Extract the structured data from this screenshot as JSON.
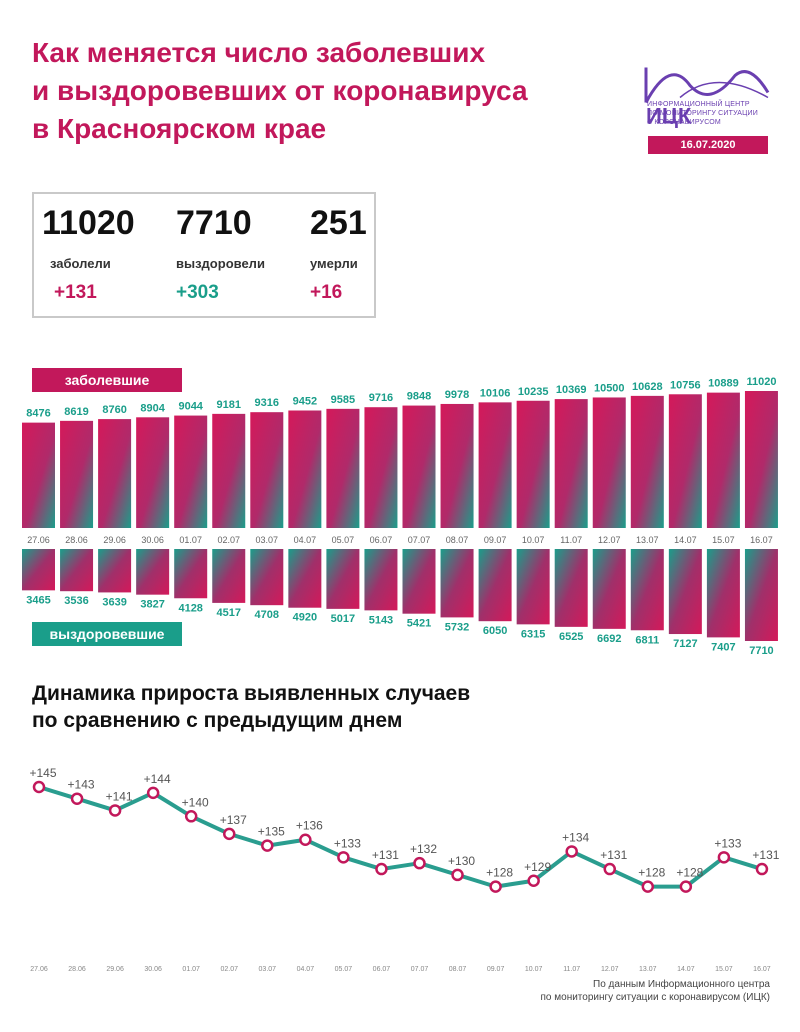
{
  "header": {
    "title_lines": [
      "Как меняется число заболевших",
      "и выздоровевших от коронавируса",
      "в Красноярском крае"
    ],
    "logo_text": "ИЦК",
    "logo_sub_lines": [
      "ИНФОРМАЦИОННЫЙ ЦЕНТР",
      "ПО МОНИТОРИНГУ СИТУАЦИИ",
      "С КОРОНАВИРУСОМ"
    ],
    "date": "16.07.2020"
  },
  "summary": {
    "cases": {
      "value": "11020",
      "label": "заболели",
      "delta": "+131"
    },
    "recovered": {
      "value": "7710",
      "label": "выздоровели",
      "delta": "+303"
    },
    "deaths": {
      "value": "251",
      "label": "умерли",
      "delta": "+16"
    }
  },
  "colors": {
    "accent": "#c2185b",
    "teal": "#1a9e8a",
    "line": "#2a9d8f",
    "grid_text": "#888888"
  },
  "section_title_lines": [
    "Динамика прироста выявленных случаев",
    "по сравнению с предыдущим днем"
  ],
  "source_lines": [
    "По данным Информационного центра",
    "по мониторингу ситуации с коронавирусом (ИЦК)"
  ],
  "chart_data": [
    {
      "type": "bar",
      "name": "заболевшие",
      "categories": [
        "27.06",
        "28.06",
        "29.06",
        "30.06",
        "01.07",
        "02.07",
        "03.07",
        "04.07",
        "05.07",
        "06.07",
        "07.07",
        "08.07",
        "09.07",
        "10.07",
        "11.07",
        "12.07",
        "13.07",
        "14.07",
        "15.07",
        "16.07"
      ],
      "values": [
        8476,
        8619,
        8760,
        8904,
        9044,
        9181,
        9316,
        9452,
        9585,
        9716,
        9848,
        9978,
        10106,
        10235,
        10369,
        10500,
        10628,
        10756,
        10889,
        11020
      ]
    },
    {
      "type": "bar",
      "name": "выздоровевшие",
      "categories": [
        "27.06",
        "28.06",
        "29.06",
        "30.06",
        "01.07",
        "02.07",
        "03.07",
        "04.07",
        "05.07",
        "06.07",
        "07.07",
        "08.07",
        "09.07",
        "10.07",
        "11.07",
        "12.07",
        "13.07",
        "14.07",
        "15.07",
        "16.07"
      ],
      "values": [
        3465,
        3536,
        3639,
        3827,
        4128,
        4517,
        4708,
        4920,
        5017,
        5143,
        5421,
        5732,
        6050,
        6315,
        6525,
        6692,
        6811,
        7127,
        7407,
        7710
      ]
    },
    {
      "type": "line",
      "categories": [
        "27.06",
        "28.06",
        "29.06",
        "30.06",
        "01.07",
        "02.07",
        "03.07",
        "04.07",
        "05.07",
        "06.07",
        "07.07",
        "08.07",
        "09.07",
        "10.07",
        "11.07",
        "12.07",
        "13.07",
        "14.07",
        "15.07",
        "16.07"
      ],
      "values": [
        145,
        143,
        141,
        144,
        140,
        137,
        135,
        136,
        133,
        131,
        132,
        130,
        128,
        129,
        134,
        131,
        128,
        128,
        133,
        131
      ],
      "labels": [
        "+145",
        "+143",
        "+141",
        "+144",
        "+140",
        "+137",
        "+135",
        "+136",
        "+133",
        "+131",
        "+132",
        "+130",
        "+128",
        "+129",
        "+134",
        "+131",
        "+128",
        "+128",
        "+133",
        "+131"
      ]
    }
  ]
}
